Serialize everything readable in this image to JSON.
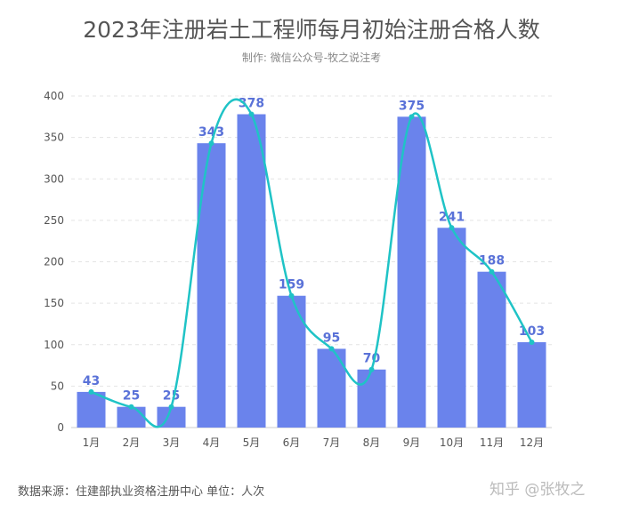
{
  "chart_data": {
    "type": "bar",
    "title": "2023年注册岩土工程师每月初始注册合格人数",
    "subtitle": "制作: 微信公众号-牧之说注考",
    "categories": [
      "1月",
      "2月",
      "3月",
      "4月",
      "5月",
      "6月",
      "7月",
      "8月",
      "9月",
      "10月",
      "11月",
      "12月"
    ],
    "values": [
      43,
      25,
      25,
      343,
      378,
      159,
      95,
      70,
      375,
      241,
      188,
      103
    ],
    "overlay_line": "smooth line through bar values",
    "ylim": [
      0,
      400
    ],
    "yticks": [
      0,
      50,
      100,
      150,
      200,
      250,
      300,
      350,
      400
    ],
    "grid": "horizontal dashed",
    "legend": "none",
    "colors": {
      "bar": "#6a83ec",
      "line": "#1fc3c6",
      "label": "#5a72d8"
    }
  },
  "footer": "数据来源：住建部执业资格注册中心   单位：人次",
  "watermark": "知乎 @张牧之"
}
